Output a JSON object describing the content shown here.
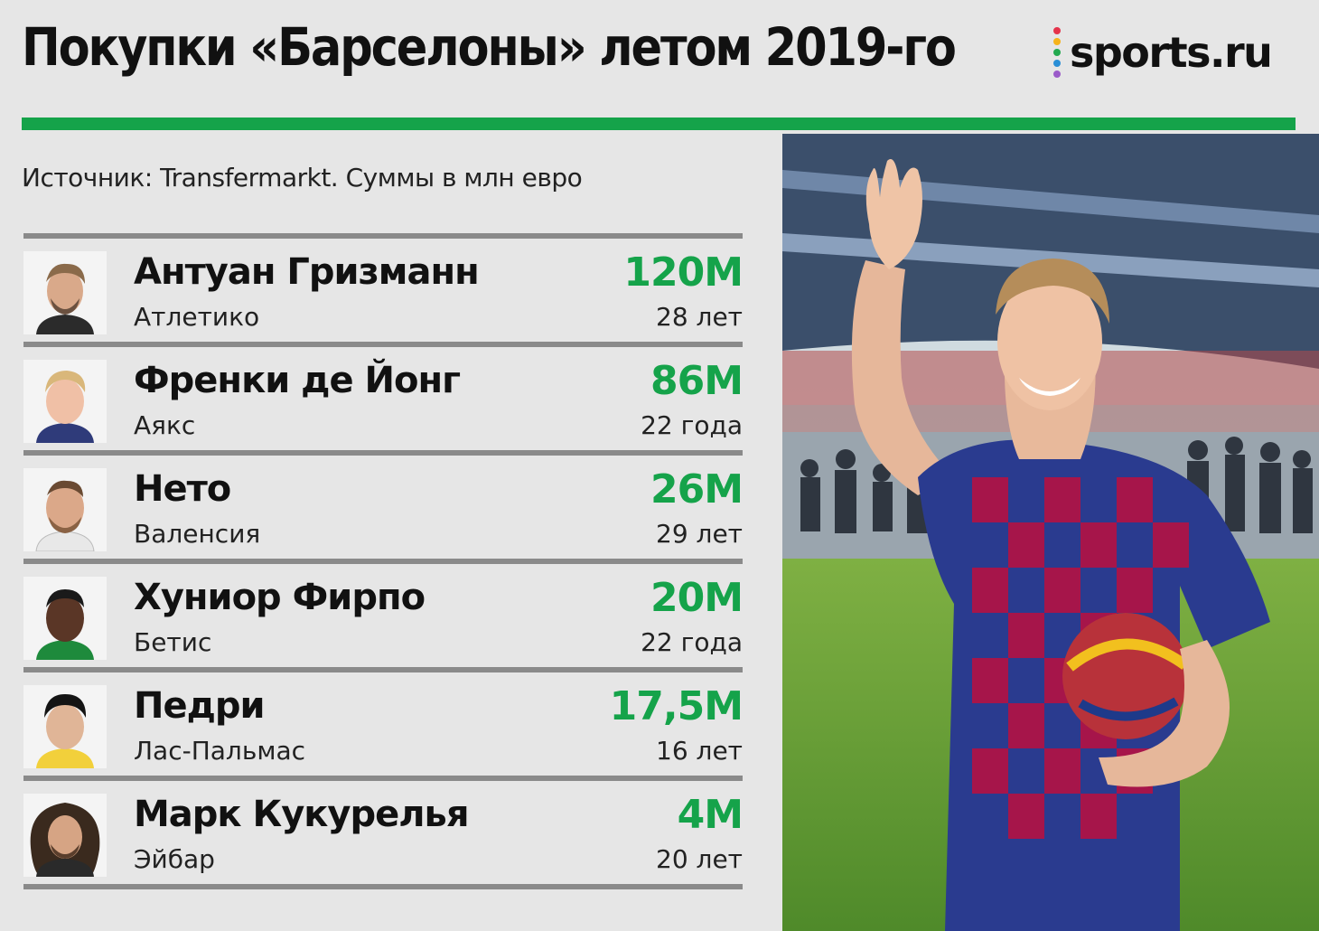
{
  "header": {
    "title": "Покупки «Барселоны» летом 2019-го",
    "logo_text": "sports.ru",
    "logo_dot_colors": [
      "#e5334b",
      "#f6b31b",
      "#23a94f",
      "#2a8fd6",
      "#9b5bc9"
    ],
    "accent_color": "#15a34a"
  },
  "source": "Источник: Transfermarkt. Суммы в млн евро",
  "players": [
    {
      "name": "Антуан Гризманн",
      "club": "Атлетико",
      "fee": "120М",
      "age": "28 лет"
    },
    {
      "name": "Френки де Йонг",
      "club": "Аякс",
      "fee": "86М",
      "age": "22 года"
    },
    {
      "name": "Нето",
      "club": "Валенсия",
      "fee": "26М",
      "age": "29 лет"
    },
    {
      "name": "Хуниор Фирпо",
      "club": "Бетис",
      "fee": "20М",
      "age": "22 года"
    },
    {
      "name": "Педри",
      "club": "Лас-Пальмас",
      "fee": "17,5М",
      "age": "16 лет"
    },
    {
      "name": "Марк Кукурелья",
      "club": "Эйбар",
      "fee": "4М",
      "age": "20 лет"
    }
  ]
}
